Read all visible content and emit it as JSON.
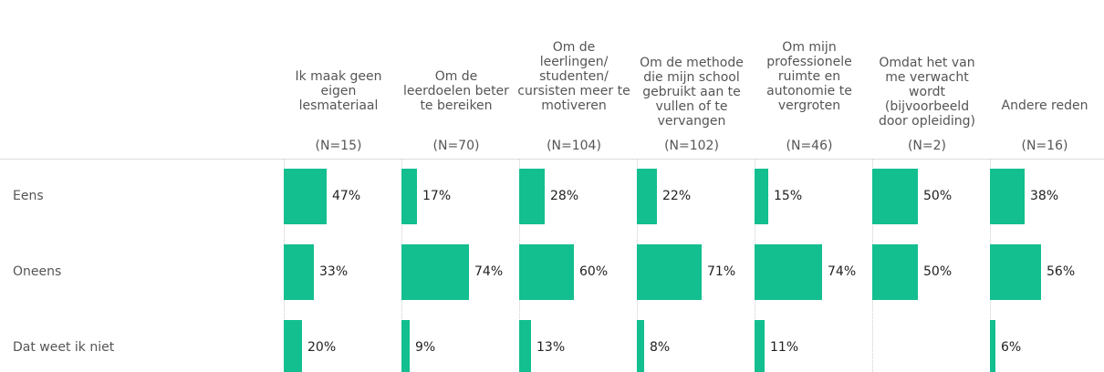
{
  "chart_data": {
    "type": "bar",
    "categories": [
      "Eens",
      "Oneens",
      "Dat weet ik niet"
    ],
    "series": [
      {
        "name": "Ik maak geen eigen lesmateriaal",
        "n_label": "(N=15)",
        "color": "#13bf8f",
        "values": [
          47,
          33,
          20
        ],
        "value_labels": [
          "47%",
          "33%",
          "20%"
        ]
      },
      {
        "name": "Om de leerdoelen beter te bereiken",
        "n_label": "(N=70)",
        "color": "#13bf8f",
        "values": [
          17,
          74,
          9
        ],
        "value_labels": [
          "17%",
          "74%",
          "9%"
        ]
      },
      {
        "name": "Om de leerlingen/ studenten/ cursisten meer te motiveren",
        "n_label": "(N=104)",
        "color": "#13bf8f",
        "values": [
          28,
          60,
          13
        ],
        "value_labels": [
          "28%",
          "60%",
          "13%"
        ]
      },
      {
        "name": "Om de methode die mijn school gebruikt aan te vullen of te vervangen",
        "n_label": "(N=102)",
        "color": "#13bf8f",
        "values": [
          22,
          71,
          8
        ],
        "value_labels": [
          "22%",
          "71%",
          "8%"
        ]
      },
      {
        "name": "Om mijn professionele ruimte en autonomie te vergroten",
        "n_label": "(N=46)",
        "color": "#13bf8f",
        "values": [
          15,
          74,
          11
        ],
        "value_labels": [
          "15%",
          "74%",
          "11%"
        ]
      },
      {
        "name": "Omdat het van me verwacht wordt (bijvoorbeeld door opleiding)",
        "n_label": "(N=2)",
        "color": "#13bf8f",
        "values": [
          50,
          50,
          null
        ],
        "value_labels": [
          "50%",
          "50%",
          null
        ]
      },
      {
        "name": "Andere reden",
        "n_label": "(N=16)",
        "color": "#13bf8f",
        "values": [
          38,
          56,
          6
        ],
        "value_labels": [
          "38%",
          "56%",
          "6%"
        ]
      }
    ]
  }
}
